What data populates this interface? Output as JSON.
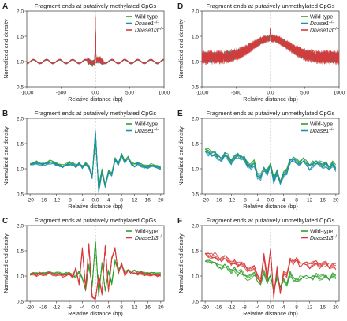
{
  "colors": {
    "wild_type": "#2ca02c",
    "dnase1": "#1f8fa8",
    "dnase1l3": "#d83a3a",
    "zero_line": "#999999"
  },
  "chart_data": [
    {
      "panel": "A",
      "type": "line",
      "title": "Fragment ends at putatively methylated CpGs",
      "xlabel": "Relative distance (bp)",
      "ylabel": "Normalized end density",
      "xlim": [
        -1000,
        1000
      ],
      "ylim": [
        0.5,
        2.0
      ],
      "xticks": [
        -1000,
        -500,
        0,
        500,
        1000
      ],
      "yticks": [
        0.5,
        1.0,
        1.5,
        2.0
      ],
      "zero_line": true,
      "legend_position": "top-right",
      "legend": [
        {
          "label": "Wild-type",
          "sup": "",
          "color": "#2ca02c"
        },
        {
          "label": "Dnase1",
          "sup": "–/–",
          "color": "#1f8fa8"
        },
        {
          "label": "Dnase1l3",
          "sup": "–/–",
          "color": "#d83a3a"
        }
      ],
      "pattern": "A",
      "series": [
        {
          "name": "Wild-type",
          "color": "#2ca02c",
          "replicates": 4
        },
        {
          "name": "Dnase1",
          "color": "#1f8fa8",
          "replicates": 5
        },
        {
          "name": "Dnase1l3",
          "color": "#d83a3a",
          "replicates": 5
        }
      ]
    },
    {
      "panel": "D",
      "type": "line",
      "title": "Fragment ends at putatively unmethylated CpGs",
      "xlabel": "Relative distance (bp)",
      "ylabel": "Normalized end density",
      "xlim": [
        -1000,
        1000
      ],
      "ylim": [
        0.5,
        2.0
      ],
      "xticks": [
        -1000,
        -500,
        0,
        500,
        1000
      ],
      "yticks": [
        0.5,
        1.0,
        1.5,
        2.0
      ],
      "zero_line": true,
      "legend_position": "top-right",
      "legend": [
        {
          "label": "Wild-type",
          "sup": "",
          "color": "#2ca02c"
        },
        {
          "label": "Dnase1",
          "sup": "–/–",
          "color": "#1f8fa8"
        },
        {
          "label": "Dnase1l3",
          "sup": "–/–",
          "color": "#d83a3a"
        }
      ],
      "pattern": "D",
      "series": [
        {
          "name": "Wild-type",
          "color": "#2ca02c",
          "replicates": 4
        },
        {
          "name": "Dnase1",
          "color": "#1f8fa8",
          "replicates": 5
        },
        {
          "name": "Dnase1l3",
          "color": "#d83a3a",
          "replicates": 5
        }
      ]
    },
    {
      "panel": "B",
      "type": "line",
      "title": "Fragment ends at putatively methylated CpGs",
      "xlabel": "Relative distance (bp)",
      "ylabel": "Normalized end density",
      "xlim": [
        -21,
        21
      ],
      "ylim": [
        0.5,
        2.0
      ],
      "xticks": [
        -20,
        -16,
        -12,
        -8,
        -4,
        0,
        4,
        8,
        12,
        16,
        20
      ],
      "yticks": [
        0.5,
        1.0,
        1.5,
        2.0
      ],
      "zero_line": true,
      "legend_position": "top-right",
      "legend": [
        {
          "label": "Wild-type",
          "sup": "",
          "color": "#2ca02c"
        },
        {
          "label": "Dnase1",
          "sup": "–/–",
          "color": "#1f8fa8"
        }
      ],
      "pattern": "B",
      "x": [
        -20,
        -19,
        -18,
        -17,
        -16,
        -15,
        -14,
        -13,
        -12,
        -11,
        -10,
        -9,
        -8,
        -7,
        -6,
        -5,
        -4,
        -3,
        -2,
        -1,
        0,
        1,
        2,
        3,
        4,
        5,
        6,
        7,
        8,
        9,
        10,
        11,
        12,
        13,
        14,
        15,
        16,
        17,
        18,
        19,
        20
      ],
      "series": [
        {
          "name": "Wild-type",
          "color": "#2ca02c",
          "replicates": 4,
          "values": [
            1.1,
            1.12,
            1.13,
            1.11,
            1.1,
            1.12,
            1.15,
            1.14,
            1.1,
            1.08,
            1.06,
            1.08,
            1.12,
            1.1,
            1.06,
            1.12,
            1.05,
            1.1,
            1.05,
            0.85,
            1.58,
            0.65,
            0.98,
            0.7,
            0.95,
            0.9,
            1.2,
            1.1,
            1.28,
            1.15,
            1.22,
            1.12,
            1.08,
            1.12,
            1.08,
            1.06,
            1.05,
            1.08,
            1.06,
            1.05,
            1.03
          ]
        },
        {
          "name": "Dnase1",
          "color": "#1f8fa8",
          "replicates": 5,
          "values": [
            1.08,
            1.1,
            1.11,
            1.09,
            1.08,
            1.1,
            1.12,
            1.12,
            1.08,
            1.06,
            1.04,
            1.06,
            1.1,
            1.08,
            1.04,
            1.1,
            1.03,
            1.08,
            1.04,
            0.82,
            1.75,
            0.55,
            0.92,
            0.65,
            0.92,
            0.88,
            1.18,
            1.08,
            1.25,
            1.12,
            1.2,
            1.1,
            1.06,
            1.1,
            1.06,
            1.04,
            1.03,
            1.06,
            1.04,
            1.03,
            1.01
          ]
        }
      ]
    },
    {
      "panel": "E",
      "type": "line",
      "title": "Fragment ends at putatively unmethylated CpGs",
      "xlabel": "Relative distance (bp)",
      "ylabel": "Normalized end density",
      "xlim": [
        -21,
        21
      ],
      "ylim": [
        0.5,
        2.0
      ],
      "xticks": [
        -20,
        -16,
        -12,
        -8,
        -4,
        0,
        4,
        8,
        12,
        16,
        20
      ],
      "yticks": [
        0.5,
        1.0,
        1.5,
        2.0
      ],
      "zero_line": true,
      "legend_position": "top-right",
      "legend": [
        {
          "label": "Wild-type",
          "sup": "",
          "color": "#2ca02c"
        },
        {
          "label": "Dnase1",
          "sup": "–/–",
          "color": "#1f8fa8"
        }
      ],
      "pattern": "E",
      "x": [
        -20,
        -19,
        -18,
        -17,
        -16,
        -15,
        -14,
        -13,
        -12,
        -11,
        -10,
        -9,
        -8,
        -7,
        -6,
        -5,
        -4,
        -3,
        -2,
        -1,
        0,
        1,
        2,
        3,
        4,
        5,
        6,
        7,
        8,
        9,
        10,
        11,
        12,
        13,
        14,
        15,
        16,
        17,
        18,
        19,
        20
      ],
      "series": [
        {
          "name": "Wild-type",
          "color": "#2ca02c",
          "replicates": 4,
          "values": [
            1.4,
            1.35,
            1.3,
            1.32,
            1.25,
            1.2,
            1.3,
            1.25,
            1.15,
            1.22,
            1.28,
            1.25,
            1.2,
            1.1,
            1.05,
            1.12,
            0.88,
            0.85,
            1.0,
            0.95,
            1.1,
            0.8,
            0.95,
            0.75,
            0.92,
            0.95,
            1.18,
            1.2,
            1.15,
            1.12,
            1.18,
            1.15,
            1.05,
            1.1,
            1.15,
            1.12,
            1.08,
            1.1,
            1.05,
            1.1,
            1.02
          ]
        },
        {
          "name": "Dnase1",
          "color": "#1f8fa8",
          "replicates": 5,
          "values": [
            1.35,
            1.3,
            1.28,
            1.3,
            1.22,
            1.18,
            1.28,
            1.22,
            1.12,
            1.2,
            1.25,
            1.22,
            1.18,
            1.08,
            1.02,
            1.1,
            0.85,
            0.82,
            0.98,
            0.92,
            1.05,
            0.75,
            0.9,
            0.7,
            0.88,
            0.92,
            1.15,
            1.18,
            1.12,
            1.1,
            1.15,
            1.12,
            1.02,
            1.08,
            1.12,
            1.1,
            1.05,
            1.08,
            1.02,
            1.08,
            1.0
          ]
        }
      ]
    },
    {
      "panel": "C",
      "type": "line",
      "title": "Fragment ends at putatively methylated CpGs",
      "xlabel": "Relative distance (bp)",
      "ylabel": "Normalized end density",
      "xlim": [
        -21,
        21
      ],
      "ylim": [
        0.5,
        2.0
      ],
      "xticks": [
        -20,
        -16,
        -12,
        -8,
        -4,
        0,
        4,
        8,
        12,
        16,
        20
      ],
      "yticks": [
        0.5,
        1.0,
        1.5,
        2.0
      ],
      "zero_line": true,
      "legend_position": "top-right",
      "legend": [
        {
          "label": "Wild-type",
          "sup": "",
          "color": "#2ca02c"
        },
        {
          "label": "Dnase1l3",
          "sup": "–/–",
          "color": "#d83a3a"
        }
      ],
      "pattern": "C",
      "x": [
        -20,
        -19,
        -18,
        -17,
        -16,
        -15,
        -14,
        -13,
        -12,
        -11,
        -10,
        -9,
        -8,
        -7,
        -6,
        -5,
        -4,
        -3,
        -2,
        -1,
        0,
        1,
        2,
        3,
        4,
        5,
        6,
        7,
        8,
        9,
        10,
        11,
        12,
        13,
        14,
        15,
        16,
        17,
        18,
        19,
        20
      ],
      "series": [
        {
          "name": "Wild-type",
          "color": "#2ca02c",
          "replicates": 4,
          "values": [
            1.05,
            1.06,
            1.05,
            1.07,
            1.06,
            1.05,
            1.08,
            1.06,
            1.05,
            1.06,
            1.03,
            1.05,
            1.04,
            1.02,
            0.98,
            1.1,
            0.95,
            0.72,
            1.22,
            0.8,
            1.72,
            0.62,
            1.25,
            0.72,
            1.1,
            0.85,
            1.3,
            1.12,
            1.2,
            1.1,
            1.12,
            1.08,
            1.1,
            1.06,
            1.08,
            1.05,
            1.06,
            1.05,
            1.06,
            1.04,
            1.05
          ]
        },
        {
          "name": "Dnase1l3",
          "color": "#d83a3a",
          "replicates": 5,
          "values": [
            1.02,
            1.04,
            1.02,
            1.05,
            1.03,
            1.02,
            1.05,
            1.03,
            1.02,
            1.03,
            1.0,
            1.02,
            1.05,
            0.98,
            1.15,
            0.85,
            1.55,
            0.75,
            1.62,
            0.6,
            0.55,
            1.0,
            0.65,
            1.6,
            0.72,
            1.35,
            1.55,
            1.05,
            1.25,
            1.02,
            1.12,
            1.05,
            1.08,
            1.03,
            1.06,
            1.02,
            1.04,
            1.02,
            1.03,
            1.01,
            1.02
          ]
        }
      ]
    },
    {
      "panel": "F",
      "type": "line",
      "title": "Fragment ends at putatively unmethylated CpGs",
      "xlabel": "Relative distance (bp)",
      "ylabel": "Normalized end density",
      "xlim": [
        -21,
        21
      ],
      "ylim": [
        0.5,
        2.0
      ],
      "xticks": [
        -20,
        -16,
        -12,
        -8,
        -4,
        0,
        4,
        8,
        12,
        16,
        20
      ],
      "yticks": [
        0.5,
        1.0,
        1.5,
        2.0
      ],
      "zero_line": true,
      "legend_position": "top-right",
      "legend": [
        {
          "label": "Wild-type",
          "sup": "",
          "color": "#2ca02c"
        },
        {
          "label": "Dnase1l3",
          "sup": "–/–",
          "color": "#d83a3a"
        }
      ],
      "pattern": "F",
      "x": [
        -20,
        -19,
        -18,
        -17,
        -16,
        -15,
        -14,
        -13,
        -12,
        -11,
        -10,
        -9,
        -8,
        -7,
        -6,
        -5,
        -4,
        -3,
        -2,
        -1,
        0,
        1,
        2,
        3,
        4,
        5,
        6,
        7,
        8,
        9,
        10,
        11,
        12,
        13,
        14,
        15,
        16,
        17,
        18,
        19,
        20
      ],
      "series": [
        {
          "name": "Wild-type",
          "color": "#2ca02c",
          "replicates": 4,
          "values": [
            1.3,
            1.28,
            1.25,
            1.28,
            1.2,
            1.18,
            1.22,
            1.15,
            1.1,
            1.12,
            1.05,
            1.08,
            1.0,
            0.95,
            0.98,
            1.02,
            0.92,
            0.85,
            1.1,
            0.9,
            1.05,
            0.72,
            1.0,
            0.78,
            0.92,
            0.85,
            1.05,
            0.95,
            0.92,
            0.95,
            1.0,
            0.98,
            0.95,
            0.98,
            1.0,
            0.95,
            0.98,
            1.0,
            0.95,
            1.02,
            1.0
          ]
        },
        {
          "name": "Dnase1l3",
          "color": "#d83a3a",
          "replicates": 5,
          "values": [
            1.45,
            1.42,
            1.4,
            1.42,
            1.35,
            1.32,
            1.38,
            1.3,
            1.25,
            1.3,
            1.22,
            1.25,
            1.2,
            1.12,
            1.15,
            1.2,
            1.0,
            0.9,
            1.4,
            0.95,
            1.55,
            0.6,
            1.15,
            0.65,
            1.05,
            1.0,
            1.3,
            1.25,
            1.35,
            1.22,
            1.3,
            1.25,
            1.2,
            1.25,
            1.28,
            1.2,
            1.22,
            1.25,
            1.2,
            1.22,
            1.18
          ]
        }
      ]
    }
  ]
}
